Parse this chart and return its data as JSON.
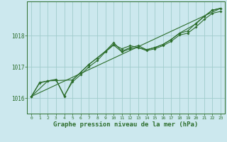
{
  "background_color": "#cce8ee",
  "grid_color": "#a0cccc",
  "line_color": "#2d6e2d",
  "xlabel": "Graphe pression niveau de la mer (hPa)",
  "xlim": [
    -0.5,
    23.5
  ],
  "ylim": [
    1015.5,
    1019.1
  ],
  "yticks": [
    1016,
    1017,
    1018
  ],
  "xticks": [
    0,
    1,
    2,
    3,
    4,
    5,
    6,
    7,
    8,
    9,
    10,
    11,
    12,
    13,
    14,
    15,
    16,
    17,
    18,
    19,
    20,
    21,
    22,
    23
  ],
  "line1_x": [
    0,
    1,
    2,
    3,
    4,
    5,
    6,
    7,
    8,
    9,
    10,
    11,
    12,
    13,
    14,
    15,
    16,
    17,
    18,
    19,
    20,
    21,
    22,
    23
  ],
  "line1_y": [
    1016.05,
    1016.5,
    1016.55,
    1016.58,
    1016.08,
    1016.52,
    1016.75,
    1017.0,
    1017.2,
    1017.48,
    1017.7,
    1017.48,
    1017.58,
    1017.62,
    1017.52,
    1017.58,
    1017.68,
    1017.82,
    1018.02,
    1018.08,
    1018.28,
    1018.52,
    1018.72,
    1018.78
  ],
  "line2_x": [
    0,
    1,
    2,
    3,
    4,
    5,
    6,
    7,
    8,
    9,
    10,
    11,
    12,
    13,
    14,
    15,
    16,
    17,
    18,
    19,
    20,
    21,
    22,
    23
  ],
  "line2_y": [
    1016.05,
    1016.48,
    1016.55,
    1016.6,
    1016.05,
    1016.58,
    1016.82,
    1017.08,
    1017.28,
    1017.5,
    1017.78,
    1017.5,
    1017.62,
    1017.68,
    1017.55,
    1017.62,
    1017.72,
    1017.88,
    1018.08,
    1018.15,
    1018.4,
    1018.62,
    1018.82,
    1018.88
  ],
  "line3_x": [
    0,
    2,
    5,
    7,
    9,
    10,
    11,
    12,
    13,
    14,
    15,
    16,
    17,
    18,
    20,
    21,
    22,
    23
  ],
  "line3_y": [
    1016.05,
    1016.55,
    1016.58,
    1017.08,
    1017.5,
    1017.72,
    1017.58,
    1017.68,
    1017.62,
    1017.55,
    1017.62,
    1017.72,
    1017.88,
    1018.08,
    1018.38,
    1018.62,
    1018.82,
    1018.88
  ],
  "line4_x": [
    0,
    23
  ],
  "line4_y": [
    1016.05,
    1018.88
  ]
}
